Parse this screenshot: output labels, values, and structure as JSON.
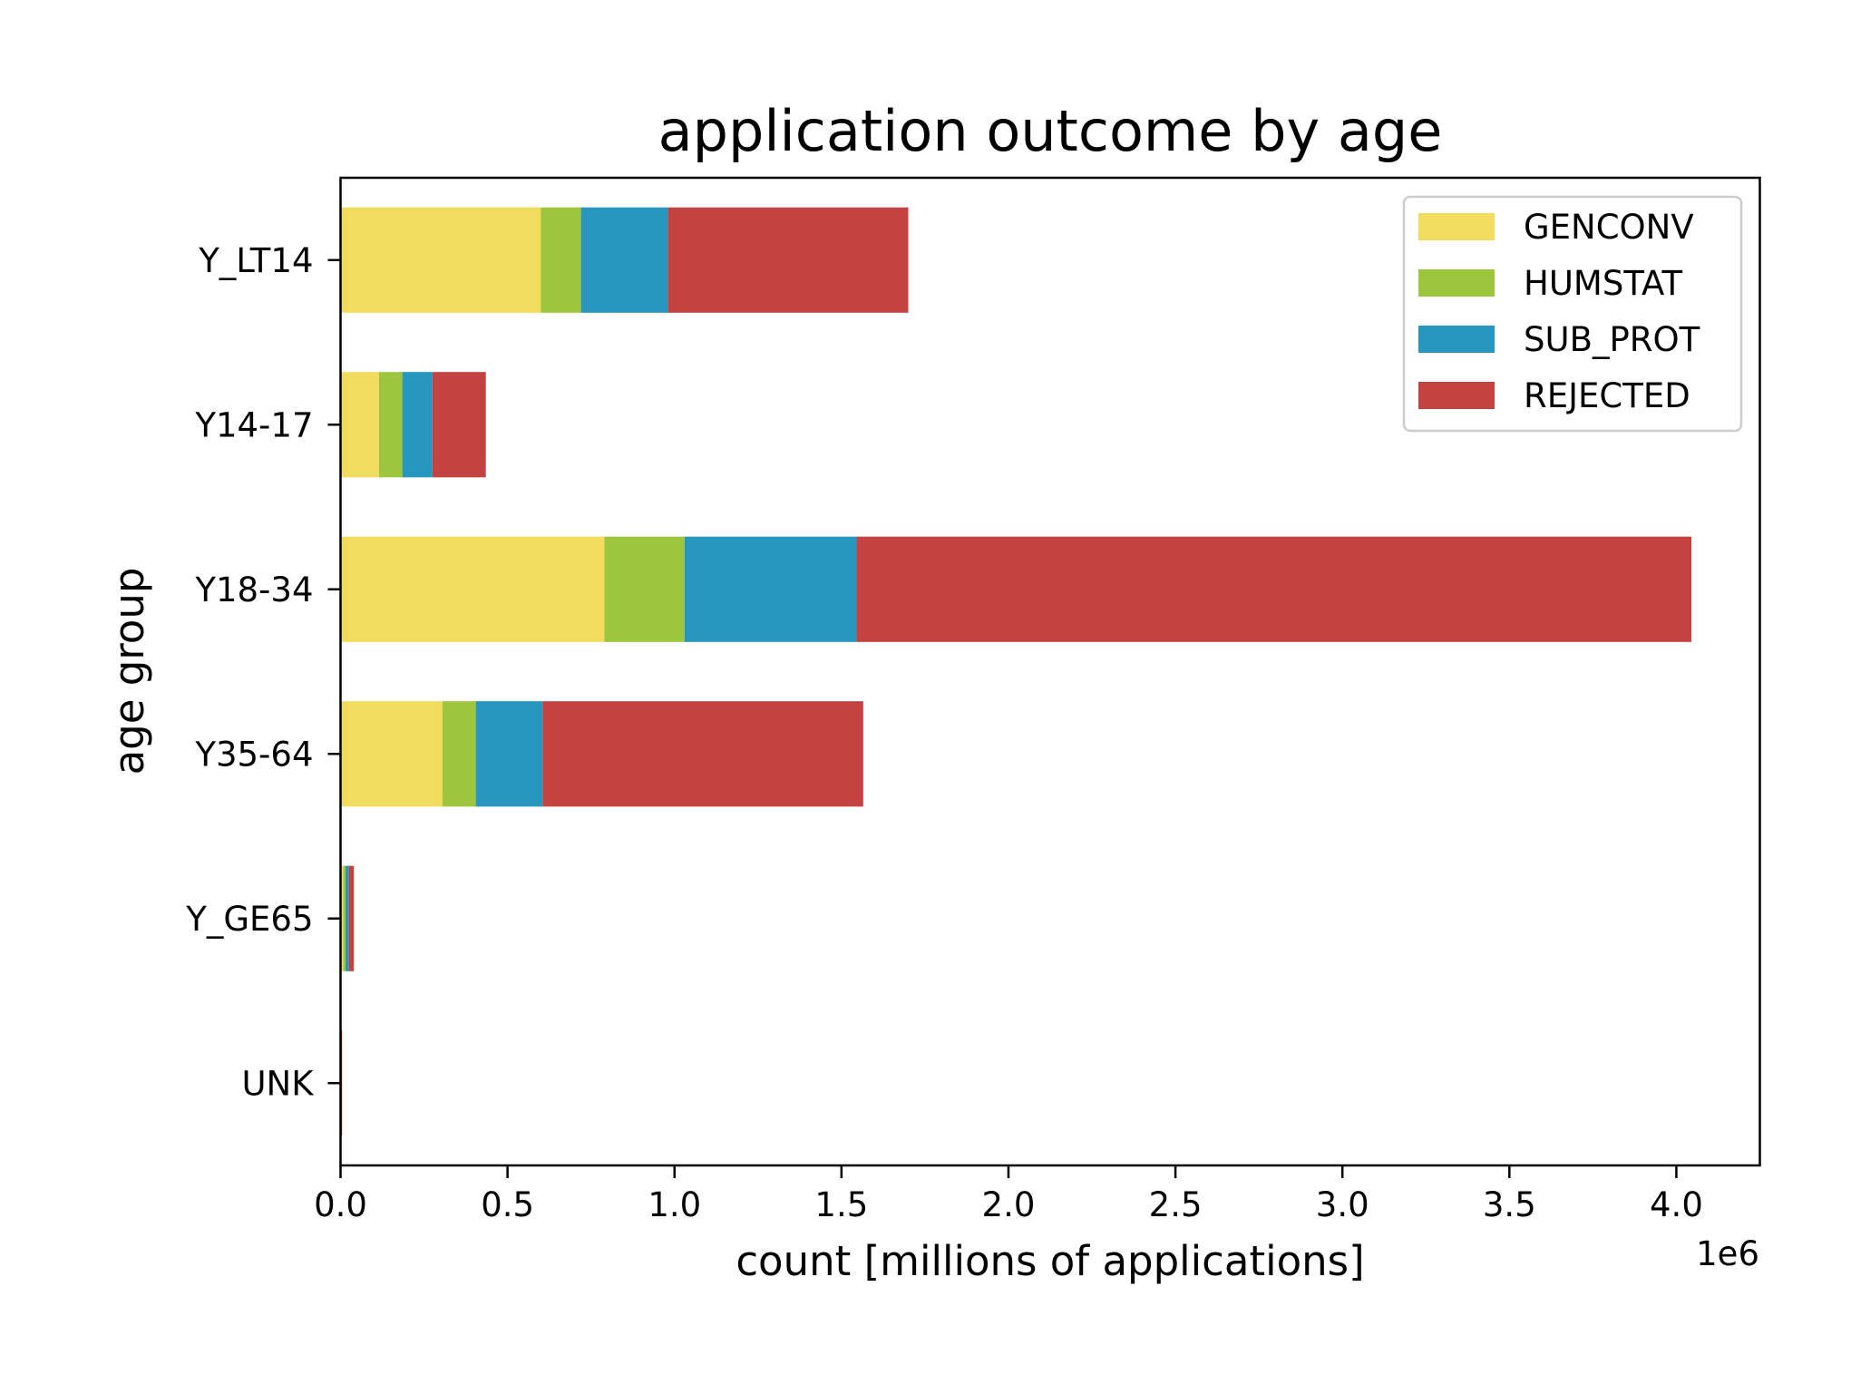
{
  "chart_data": {
    "type": "bar",
    "orientation": "horizontal",
    "stacked": true,
    "title": "application outcome by age",
    "xlabel": "count [millions of applications]",
    "ylabel": "age group",
    "x_offset_label": "1e6",
    "xlim": [
      0,
      4.25
    ],
    "x_ticks": [
      0.0,
      0.5,
      1.0,
      1.5,
      2.0,
      2.5,
      3.0,
      3.5,
      4.0
    ],
    "x_tick_labels": [
      "0.0",
      "0.5",
      "1.0",
      "1.5",
      "2.0",
      "2.5",
      "3.0",
      "3.5",
      "4.0"
    ],
    "categories": [
      "Y_LT14",
      "Y14-17",
      "Y18-34",
      "Y35-64",
      "Y_GE65",
      "UNK"
    ],
    "series": [
      {
        "name": "GENCONV",
        "color": "#f1dc5e",
        "values": [
          0.6,
          0.115,
          0.79,
          0.305,
          0.008,
          0.001
        ]
      },
      {
        "name": "HUMSTAT",
        "color": "#9dc63e",
        "values": [
          0.12,
          0.07,
          0.24,
          0.1,
          0.007,
          0.0005
        ]
      },
      {
        "name": "SUB_PROT",
        "color": "#2897bf",
        "values": [
          0.26,
          0.09,
          0.515,
          0.2,
          0.01,
          0.001
        ]
      },
      {
        "name": "REJECTED",
        "color": "#c24342",
        "values": [
          0.72,
          0.16,
          2.5,
          0.96,
          0.015,
          0.002
        ]
      }
    ],
    "grid": false,
    "legend_position": "top-right"
  }
}
